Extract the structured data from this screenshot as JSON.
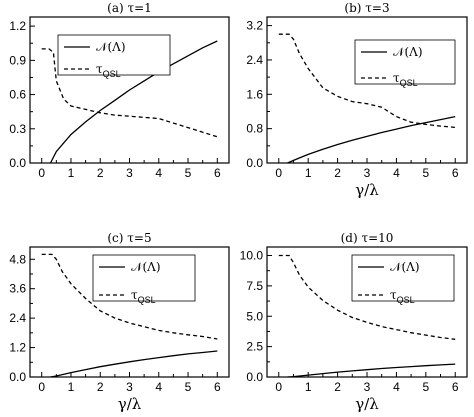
{
  "chart_data": [
    {
      "type": "line",
      "title": "(a) τ=1",
      "xlabel": "",
      "xlim": [
        -0.4,
        6.4
      ],
      "ylim": [
        0,
        1.28
      ],
      "xticks": [
        0,
        1,
        2,
        3,
        4,
        5,
        6
      ],
      "yticks": [
        "0.0",
        "0.3",
        "0.6",
        "0.9",
        "1.2"
      ],
      "legend_position": "top",
      "series": [
        {
          "name": "𝒩(Λ)",
          "style": "solid",
          "x": [
            0.3,
            0.5,
            1,
            1.5,
            2,
            2.5,
            3,
            3.5,
            4,
            4.5,
            5,
            5.5,
            6
          ],
          "values": [
            0.0,
            0.1,
            0.25,
            0.36,
            0.46,
            0.55,
            0.64,
            0.72,
            0.8,
            0.87,
            0.94,
            1.01,
            1.07
          ]
        },
        {
          "name": "τ",
          "name_sub": "QSL",
          "style": "dashed",
          "x": [
            0,
            0.25,
            0.4,
            0.5,
            0.75,
            1,
            1.5,
            2,
            2.5,
            3,
            3.5,
            4,
            4.5,
            5,
            5.5,
            6
          ],
          "values": [
            1.0,
            1.0,
            0.97,
            0.72,
            0.56,
            0.5,
            0.47,
            0.44,
            0.42,
            0.41,
            0.4,
            0.39,
            0.35,
            0.31,
            0.27,
            0.23
          ]
        }
      ]
    },
    {
      "type": "line",
      "title": "(b) τ=3",
      "xlabel": "γ/λ",
      "xlim": [
        -0.4,
        6.4
      ],
      "ylim": [
        0,
        3.4
      ],
      "xticks": [
        0,
        1,
        2,
        3,
        4,
        5,
        6
      ],
      "yticks": [
        "0.0",
        "0.8",
        "1.6",
        "2.4",
        "3.2"
      ],
      "legend_position": "top-right",
      "series": [
        {
          "name": "𝒩(Λ)",
          "style": "solid",
          "x": [
            0.3,
            0.5,
            1,
            1.5,
            2,
            2.5,
            3,
            3.5,
            4,
            4.5,
            5,
            5.5,
            6
          ],
          "values": [
            0.0,
            0.06,
            0.2,
            0.32,
            0.43,
            0.53,
            0.62,
            0.71,
            0.79,
            0.87,
            0.94,
            1.01,
            1.08
          ]
        },
        {
          "name": "τ",
          "name_sub": "QSL",
          "style": "dashed",
          "x": [
            0,
            0.35,
            0.5,
            0.7,
            1,
            1.5,
            2,
            2.5,
            3,
            3.5,
            4,
            4.5,
            5,
            5.5,
            6
          ],
          "values": [
            3.0,
            3.0,
            2.88,
            2.55,
            2.2,
            1.75,
            1.55,
            1.43,
            1.38,
            1.3,
            1.08,
            0.95,
            0.9,
            0.86,
            0.83
          ]
        }
      ]
    },
    {
      "type": "line",
      "title": "(c) τ=5",
      "xlabel": "γ/λ",
      "xlim": [
        -0.4,
        6.4
      ],
      "ylim": [
        0,
        5.3
      ],
      "xticks": [
        0,
        1,
        2,
        3,
        4,
        5,
        6
      ],
      "yticks": [
        "0.0",
        "1.2",
        "2.4",
        "3.6",
        "4.8"
      ],
      "legend_position": "top-right",
      "series": [
        {
          "name": "𝒩(Λ)",
          "style": "solid",
          "x": [
            0.3,
            0.5,
            1,
            1.5,
            2,
            2.5,
            3,
            3.5,
            4,
            4.5,
            5,
            5.5,
            6
          ],
          "values": [
            0.0,
            0.04,
            0.18,
            0.3,
            0.42,
            0.52,
            0.62,
            0.71,
            0.79,
            0.87,
            0.94,
            1.0,
            1.06
          ]
        },
        {
          "name": "τ",
          "name_sub": "QSL",
          "style": "dashed",
          "x": [
            0,
            0.35,
            0.5,
            0.7,
            1,
            1.5,
            2,
            2.5,
            3,
            3.5,
            4,
            4.5,
            5,
            5.5,
            6
          ],
          "values": [
            5.0,
            5.0,
            4.8,
            4.3,
            3.8,
            3.2,
            2.7,
            2.4,
            2.2,
            2.05,
            1.9,
            1.8,
            1.72,
            1.65,
            1.55
          ]
        }
      ]
    },
    {
      "type": "line",
      "title": "(d) τ=10",
      "xlabel": "γ/λ",
      "xlim": [
        -0.4,
        6.4
      ],
      "ylim": [
        0,
        10.7
      ],
      "xticks": [
        0,
        1,
        2,
        3,
        4,
        5,
        6
      ],
      "yticks": [
        "0.0",
        "2.5",
        "5.0",
        "7.5",
        "10.0"
      ],
      "legend_position": "top-right",
      "series": [
        {
          "name": "𝒩(Λ)",
          "style": "solid",
          "x": [
            0.3,
            0.5,
            1,
            1.5,
            2,
            2.5,
            3,
            3.5,
            4,
            4.5,
            5,
            5.5,
            6
          ],
          "values": [
            0.0,
            0.03,
            0.16,
            0.28,
            0.4,
            0.5,
            0.6,
            0.7,
            0.78,
            0.86,
            0.93,
            1.0,
            1.06
          ]
        },
        {
          "name": "τ",
          "name_sub": "QSL",
          "style": "dashed",
          "x": [
            0,
            0.35,
            0.5,
            0.7,
            1,
            1.5,
            2,
            2.5,
            3,
            3.5,
            4,
            4.5,
            5,
            5.5,
            6
          ],
          "values": [
            10.0,
            10.0,
            9.4,
            8.4,
            7.4,
            6.3,
            5.5,
            4.9,
            4.5,
            4.15,
            3.9,
            3.65,
            3.45,
            3.25,
            3.1
          ]
        }
      ]
    }
  ]
}
